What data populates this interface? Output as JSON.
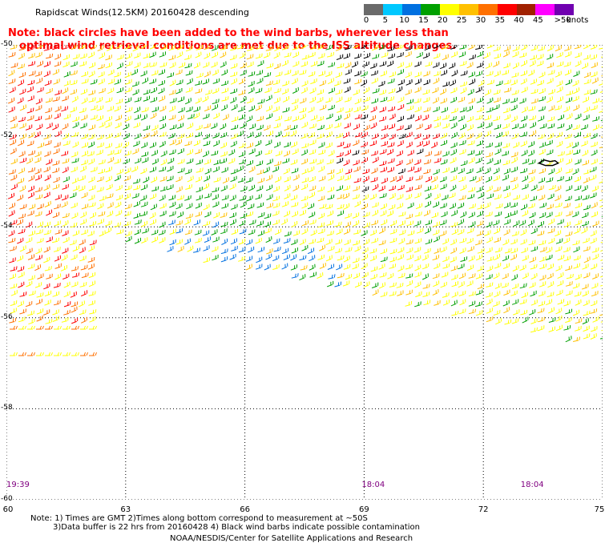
{
  "header": {
    "title": "Rapidscat Winds(12.5KM) 20160428 descending",
    "note_line1": "Note: black circles have been added to the wind barbs, wherever less than",
    "note_line2": "optimal wind retrieval conditions are met due to the ISS altitude changes."
  },
  "color_scale": {
    "unit": "knots",
    "labels": [
      "0",
      "5",
      "10",
      "15",
      "20",
      "25",
      "30",
      "35",
      "40",
      "45",
      ">50"
    ],
    "colors": [
      "#6a6a6a",
      "#00c8ff",
      "#0070e0",
      "#00a000",
      "#ffff00",
      "#ffc000",
      "#ff7000",
      "#ff0000",
      "#a02000",
      "#ff00ff",
      "#7000b0"
    ]
  },
  "map": {
    "lon_range": [
      60,
      75
    ],
    "lat_range": [
      -60,
      -50
    ],
    "lon_labels": [
      "60",
      "63",
      "66",
      "69",
      "72",
      "75"
    ],
    "lat_labels": [
      "-50",
      "-52",
      "-54",
      "-56",
      "-58",
      "-60"
    ],
    "time_labels": [
      {
        "text": "19:39",
        "lon": 60.0
      },
      {
        "text": "18:04",
        "lon": 69.1
      },
      {
        "text": "18:04",
        "lon": 73.1
      }
    ],
    "island_name_shown": false
  },
  "footer": {
    "line1": "Note: 1) Times are GMT 2)Times along bottom correspond to measurement at ~50S",
    "line2": "3)Data buffer is 22 hrs from 20160428 4) Black wind barbs indicate possible contamination",
    "credit": "NOAA/NESDIS/Center for Satellite Applications and Research"
  }
}
